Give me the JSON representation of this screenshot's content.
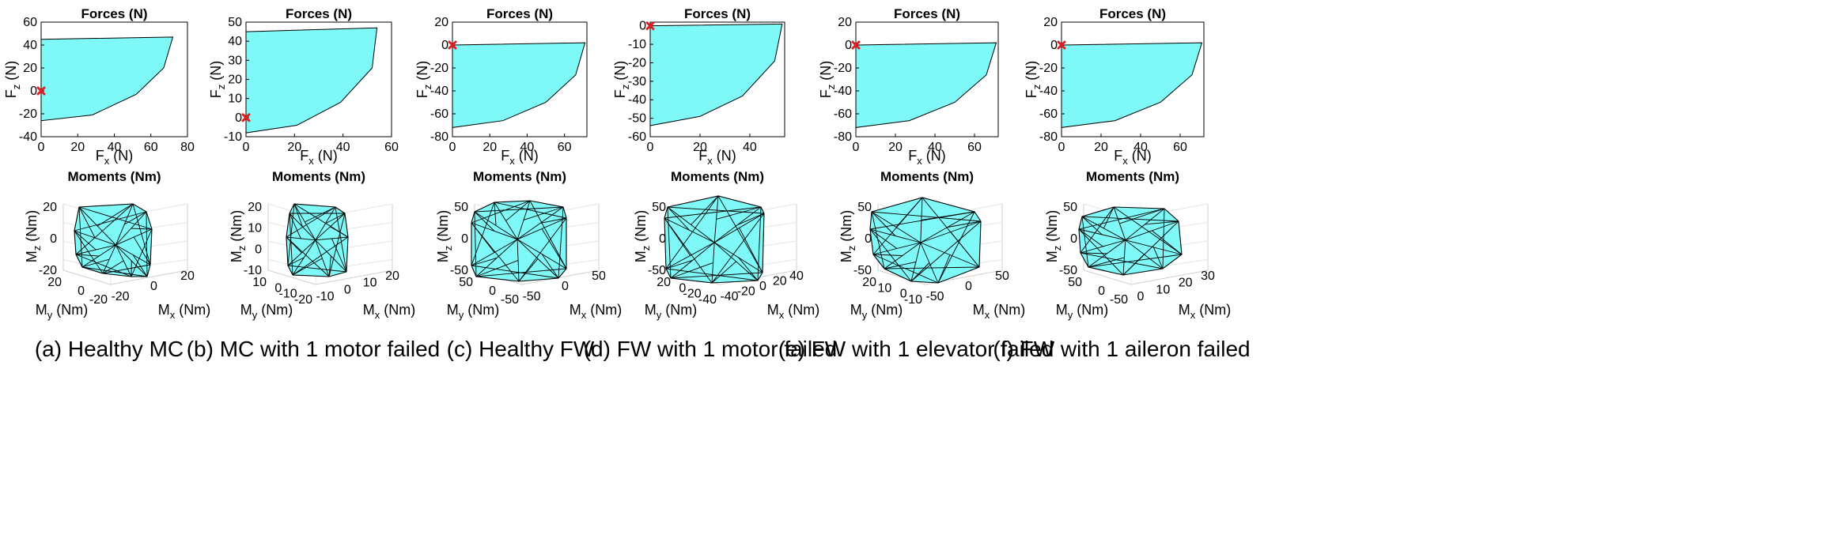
{
  "chart_data": [
    {
      "type": "area",
      "panel": "a",
      "caption": "(a) Healthy MC",
      "forces": {
        "title": "Forces (N)",
        "xlabel": "F_x (N)",
        "ylabel": "F_z (N)",
        "xlim": [
          0,
          80
        ],
        "ylim": [
          -40,
          60
        ],
        "xticks": [
          0,
          20,
          40,
          60,
          80
        ],
        "yticks": [
          -40,
          -20,
          0,
          20,
          40,
          60
        ],
        "polygon": [
          [
            0,
            45
          ],
          [
            72,
            47
          ],
          [
            67,
            20
          ],
          [
            52,
            -3
          ],
          [
            28,
            -21
          ],
          [
            0,
            -26
          ]
        ],
        "marker": [
          0,
          0
        ]
      },
      "moments": {
        "title": "Moments (Nm)",
        "xlabel": "M_x (Nm)",
        "ylabel": "M_y (Nm)",
        "zlabel": "M_z (Nm)",
        "xticks": [
          -20,
          0,
          20
        ],
        "yticks": [
          -20,
          0,
          20
        ],
        "zticks": [
          -20,
          0,
          20
        ]
      }
    },
    {
      "type": "area",
      "panel": "b",
      "caption": "(b) MC with 1 motor failed",
      "forces": {
        "title": "Forces (N)",
        "xlabel": "F_x (N)",
        "ylabel": "F_z (N)",
        "xlim": [
          0,
          60
        ],
        "ylim": [
          -10,
          50
        ],
        "xticks": [
          0,
          20,
          40,
          60
        ],
        "yticks": [
          -10,
          0,
          10,
          20,
          30,
          40,
          50
        ],
        "polygon": [
          [
            0,
            45
          ],
          [
            54,
            47
          ],
          [
            52,
            26
          ],
          [
            39,
            8
          ],
          [
            21,
            -4
          ],
          [
            0,
            -8
          ]
        ],
        "marker": [
          0,
          0
        ]
      },
      "moments": {
        "title": "Moments (Nm)",
        "xlabel": "M_x (Nm)",
        "ylabel": "M_y (Nm)",
        "zlabel": "M_z (Nm)",
        "xticks": [
          -10,
          0,
          10,
          20
        ],
        "yticks": [
          -20,
          -10,
          0,
          10
        ],
        "zticks": [
          -10,
          0,
          10,
          20
        ]
      }
    },
    {
      "type": "area",
      "panel": "c",
      "caption": "(c) Healthy FW",
      "forces": {
        "title": "Forces (N)",
        "xlabel": "F_x (N)",
        "ylabel": "F_z (N)",
        "xlim": [
          0,
          72
        ],
        "ylim": [
          -80,
          20
        ],
        "xticks": [
          0,
          20,
          40,
          60
        ],
        "yticks": [
          -80,
          -60,
          -40,
          -20,
          0,
          20
        ],
        "polygon": [
          [
            0,
            0
          ],
          [
            71,
            2
          ],
          [
            66,
            -26
          ],
          [
            50,
            -50
          ],
          [
            27,
            -66
          ],
          [
            0,
            -72
          ]
        ],
        "marker": [
          0,
          0
        ]
      },
      "moments": {
        "title": "Moments (Nm)",
        "xlabel": "M_x (Nm)",
        "ylabel": "M_y (Nm)",
        "zlabel": "M_z (Nm)",
        "xticks": [
          -50,
          0,
          50
        ],
        "yticks": [
          -50,
          0,
          50
        ],
        "zticks": [
          -50,
          0,
          50
        ]
      }
    },
    {
      "type": "area",
      "panel": "d",
      "caption": "(d) FW with 1 motor failed",
      "forces": {
        "title": "Forces (N)",
        "xlabel": "F_x (N)",
        "ylabel": "F_z (N)",
        "xlim": [
          0,
          54
        ],
        "ylim": [
          -60,
          2
        ],
        "xticks": [
          0,
          20,
          40
        ],
        "yticks": [
          -60,
          -50,
          -40,
          -30,
          -20,
          -10,
          0
        ],
        "polygon": [
          [
            0,
            0
          ],
          [
            53,
            1
          ],
          [
            50,
            -19
          ],
          [
            37,
            -38
          ],
          [
            20,
            -49
          ],
          [
            0,
            -54
          ]
        ],
        "marker": [
          0,
          0
        ]
      },
      "moments": {
        "title": "Moments (Nm)",
        "xlabel": "M_x (Nm)",
        "ylabel": "M_y (Nm)",
        "zlabel": "M_z (Nm)",
        "xticks": [
          -40,
          -20,
          0,
          20,
          40
        ],
        "yticks": [
          -40,
          -20,
          0,
          20
        ],
        "zticks": [
          -50,
          0,
          50
        ]
      }
    },
    {
      "type": "area",
      "panel": "e",
      "caption": "(e) FW with 1 elevator failed",
      "forces": {
        "title": "Forces (N)",
        "xlabel": "F_x (N)",
        "ylabel": "F_z (N)",
        "xlim": [
          0,
          72
        ],
        "ylim": [
          -80,
          20
        ],
        "xticks": [
          0,
          20,
          40,
          60
        ],
        "yticks": [
          -80,
          -60,
          -40,
          -20,
          0,
          20
        ],
        "polygon": [
          [
            0,
            0
          ],
          [
            71,
            2
          ],
          [
            66,
            -26
          ],
          [
            50,
            -50
          ],
          [
            27,
            -66
          ],
          [
            0,
            -72
          ]
        ],
        "marker": [
          0,
          0
        ]
      },
      "moments": {
        "title": "Moments (Nm)",
        "xlabel": "M_x (Nm)",
        "ylabel": "M_y (Nm)",
        "zlabel": "M_z (Nm)",
        "xticks": [
          -50,
          0,
          50
        ],
        "yticks": [
          -10,
          0,
          10,
          20
        ],
        "zticks": [
          -50,
          0,
          50
        ]
      }
    },
    {
      "type": "area",
      "panel": "f",
      "caption": "(f) FW with 1 aileron failed",
      "forces": {
        "title": "Forces (N)",
        "xlabel": "F_x (N)",
        "ylabel": "F_z (N)",
        "xlim": [
          0,
          72
        ],
        "ylim": [
          -80,
          20
        ],
        "xticks": [
          0,
          20,
          40,
          60
        ],
        "yticks": [
          -80,
          -60,
          -40,
          -20,
          0,
          20
        ],
        "polygon": [
          [
            0,
            0
          ],
          [
            71,
            2
          ],
          [
            66,
            -26
          ],
          [
            50,
            -50
          ],
          [
            27,
            -66
          ],
          [
            0,
            -72
          ]
        ],
        "marker": [
          0,
          0
        ]
      },
      "moments": {
        "title": "Moments (Nm)",
        "xlabel": "M_x (Nm)",
        "ylabel": "M_y (Nm)",
        "zlabel": "M_z (Nm)",
        "xticks": [
          0,
          10,
          20,
          30
        ],
        "yticks": [
          -50,
          0,
          50
        ],
        "zticks": [
          -50,
          0,
          50
        ]
      }
    }
  ],
  "colors": {
    "fill": "#7ff8f8",
    "marker": "#e02020"
  }
}
